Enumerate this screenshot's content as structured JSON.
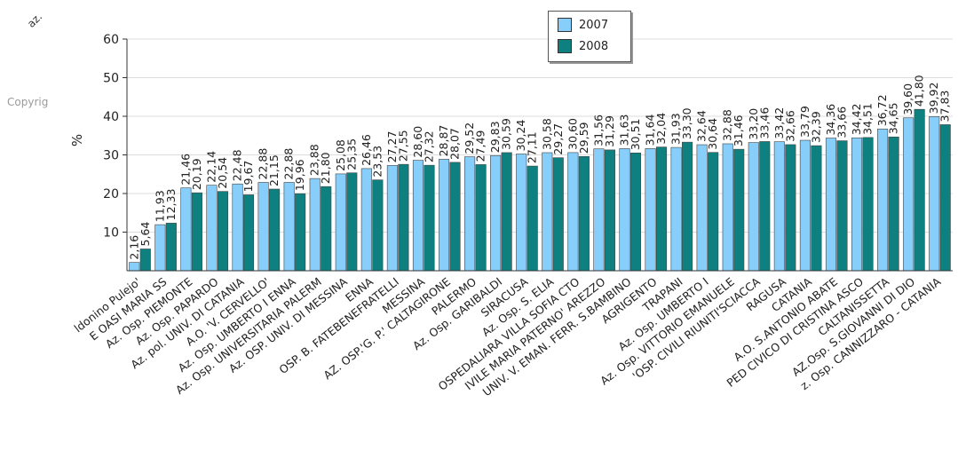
{
  "header_fragment": "az.",
  "copyright_fragment": "Copyrig",
  "chart_data": {
    "type": "bar",
    "ylabel": "%",
    "ylim": [
      0,
      60
    ],
    "yticks": [
      10,
      20,
      30,
      40,
      50,
      60
    ],
    "legend_position": "top-center",
    "grid": true,
    "colors": {
      "2007": "#87cefa",
      "2008": "#0e8080"
    },
    "categories": [
      "ldonino Pulejo'",
      "E OASI MARIA SS",
      "Az. Osp. PIEMONTE",
      "Az. Osp. PAPARDO",
      "Az. pol. UNIV. DI CATANIA",
      "A.O. 'V. CERVELLO'",
      "Az. Osp. UMBERTO I ENNA",
      "Az. Osp. UNIVERSITARIA PALERM",
      "Az. OSP. UNIV. DI MESSINA",
      "ENNA",
      "OSP. B. FATEBENEFRATELLI",
      "MESSINA",
      "AZ. OSP.'G. P.' CALTAGIRONE",
      "PALERMO",
      "Az. Osp. GARIBALDI",
      "SIRACUSA",
      "Az. Osp. S. ELIA",
      "OSPEDALIARA VILLA SOFIA CTO",
      "IVILE MARIA PATERNO' AREZZO",
      "UNIV. V. EMAN. FERR. S.BAMBINO",
      "AGRIGENTO",
      "TRAPANI",
      "Az. Osp. UMBERTO I",
      "Az. Osp. VITTORIO EMANUELE",
      "'OSP. CIVILI RIUNITI'SCIACCA",
      "RAGUSA",
      "CATANIA",
      "A.O. S.ANTONIO ABATE",
      "PED CIVICO DI CRISTINA ASCO",
      "CALTANISSETTA",
      "AZ.Osp. S.GIOVANNI DI DIO",
      "z. Osp. CANNIZZARO - CATANIA"
    ],
    "series": [
      {
        "name": "2007",
        "values": [
          2.16,
          11.93,
          21.46,
          22.14,
          22.48,
          22.88,
          22.88,
          23.88,
          25.08,
          26.46,
          27.27,
          28.6,
          28.87,
          29.52,
          29.83,
          30.24,
          30.58,
          30.6,
          31.56,
          31.63,
          31.64,
          31.93,
          32.64,
          32.88,
          33.2,
          33.42,
          33.79,
          34.36,
          34.42,
          36.72,
          39.6,
          39.92
        ],
        "labels": [
          "2,16",
          "11,93",
          "21,46",
          "22,14",
          "22,48",
          "22,88",
          "22,88",
          "23,88",
          "25,08",
          "26,46",
          "27,27",
          "28,60",
          "28,87",
          "29,52",
          "29,83",
          "30,24",
          "30,58",
          "30,60",
          "31,56",
          "31,63",
          "31,64",
          "31,93",
          "32,64",
          "32,88",
          "33,20",
          "33,42",
          "33,79",
          "34,36",
          "34,42",
          "36,72",
          "39,60",
          "39,92"
        ]
      },
      {
        "name": "2008",
        "values": [
          5.64,
          12.33,
          20.19,
          20.54,
          19.67,
          21.15,
          19.96,
          21.8,
          25.35,
          23.53,
          27.55,
          27.32,
          28.07,
          27.49,
          30.59,
          27.11,
          29.27,
          29.59,
          31.29,
          30.51,
          32.04,
          33.3,
          30.64,
          31.46,
          33.46,
          32.66,
          32.39,
          33.66,
          34.51,
          34.65,
          41.8,
          37.83
        ],
        "labels": [
          "5,64",
          "12,33",
          "20,19",
          "20,54",
          "19,67",
          "21,15",
          "19,96",
          "21,80",
          "25,35",
          "23,53",
          "27,55",
          "27,32",
          "28,07",
          "27,49",
          "30,59",
          "27,11",
          "29,27",
          "29,59",
          "31,29",
          "30,51",
          "32,04",
          "33,30",
          "30,64",
          "31,46",
          "33,46",
          "32,66",
          "32,39",
          "33,66",
          "34,51",
          "34,65",
          "41,80",
          "37,83"
        ]
      }
    ]
  }
}
